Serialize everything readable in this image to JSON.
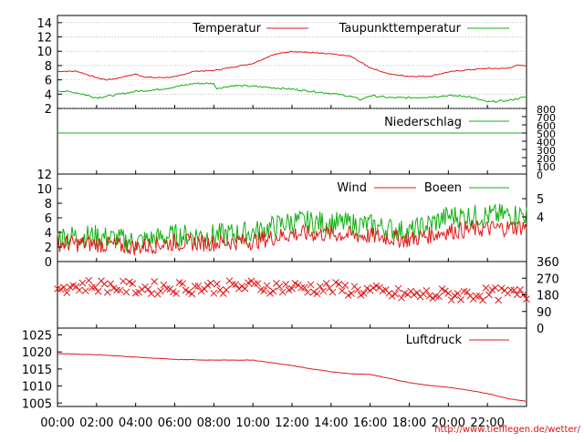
{
  "colors": {
    "red": "#e01818",
    "green": "#10b010",
    "black": "#000000",
    "grid": "#a0a0a0",
    "url": "#e01010"
  },
  "footer": {
    "url": "http://www.tiefflegen.de/wetter/"
  },
  "chart_data": [
    {
      "type": "line",
      "panel": "temperature",
      "ylim": [
        2,
        15
      ],
      "yticks": [
        "2",
        "4",
        "6",
        "8",
        "10",
        "12",
        "14"
      ],
      "xlim": [
        0,
        24
      ],
      "grid": true,
      "legend_position": "top-right",
      "series": [
        {
          "name": "Temperatur",
          "color": "#e01818",
          "x": [
            0,
            1,
            2,
            2.5,
            3,
            4,
            4.5,
            5,
            6,
            7,
            8,
            9,
            10,
            11,
            12,
            13,
            14,
            15,
            16,
            17,
            18,
            19,
            20,
            21,
            22,
            23,
            23.5,
            24
          ],
          "y": [
            7.2,
            7.2,
            6.3,
            6.0,
            6.2,
            6.8,
            6.4,
            6.3,
            6.4,
            7.2,
            7.3,
            7.8,
            8.3,
            9.5,
            10.0,
            9.8,
            9.6,
            9.3,
            7.7,
            6.8,
            6.5,
            6.5,
            7.1,
            7.4,
            7.6,
            7.6,
            8.0,
            8.0
          ]
        },
        {
          "name": "Taupunkttemperatur",
          "color": "#10b010",
          "x": [
            0,
            1,
            2,
            3,
            4,
            5,
            6,
            7,
            8,
            8.1,
            9,
            10,
            11,
            12,
            13,
            14,
            15,
            15.5,
            16,
            17,
            18,
            19,
            20,
            21,
            22,
            23,
            24
          ],
          "y": [
            4.5,
            4.2,
            3.5,
            3.9,
            4.4,
            4.6,
            5.0,
            5.5,
            5.5,
            4.8,
            5.2,
            5.1,
            4.9,
            4.7,
            4.4,
            4.1,
            3.7,
            3.2,
            3.8,
            3.5,
            3.5,
            3.6,
            3.8,
            3.7,
            2.9,
            3.1,
            3.6
          ]
        }
      ]
    },
    {
      "type": "line",
      "panel": "precipitation",
      "ylim": [
        0,
        800
      ],
      "yticks_right": [
        "0",
        "100",
        "200",
        "300",
        "400",
        "500",
        "600",
        "700",
        "800"
      ],
      "xlim": [
        0,
        24
      ],
      "legend_position": "top-right",
      "series": [
        {
          "name": "Niederschlag",
          "color": "#10b010",
          "x": [
            0,
            24
          ],
          "y": [
            500,
            500
          ]
        }
      ]
    },
    {
      "type": "line",
      "panel": "wind",
      "ylim": [
        0,
        12
      ],
      "yticks": [
        "0",
        "2",
        "4",
        "6",
        "8",
        "10",
        "12"
      ],
      "yticks_right": [
        "4",
        "5"
      ],
      "xlim": [
        0,
        24
      ],
      "legend_position": "top-right",
      "series": [
        {
          "name": "Wind",
          "color": "#e01818",
          "x": [
            0,
            2,
            4,
            6,
            8,
            10,
            12,
            14,
            16,
            18,
            20,
            22,
            24
          ],
          "y": [
            2.5,
            2.4,
            2.0,
            2.6,
            2.6,
            2.8,
            3.8,
            3.8,
            3.5,
            3.0,
            4.2,
            4.5,
            4.8
          ]
        },
        {
          "name": "Boeen",
          "color": "#10b010",
          "x": [
            0,
            2,
            4,
            6,
            8,
            10,
            12,
            14,
            16,
            18,
            20,
            22,
            24
          ],
          "y": [
            3.5,
            3.5,
            2.7,
            3.6,
            3.6,
            4.0,
            5.5,
            5.3,
            5.0,
            4.0,
            6.2,
            6.3,
            6.5
          ]
        }
      ]
    },
    {
      "type": "scatter",
      "panel": "wind-direction",
      "ylim": [
        0,
        360
      ],
      "yticks_right": [
        "0",
        "90",
        "180",
        "270",
        "360"
      ],
      "xlim": [
        0,
        24
      ],
      "series": [
        {
          "color": "#e01818",
          "x": [
            0,
            2,
            4,
            6,
            8,
            10,
            12,
            14,
            16,
            17,
            18,
            20,
            22,
            24
          ],
          "y": [
            225,
            230,
            215,
            220,
            220,
            225,
            220,
            215,
            200,
            185,
            180,
            180,
            185,
            180
          ]
        }
      ]
    },
    {
      "type": "line",
      "panel": "pressure",
      "ylim": [
        1004,
        1027
      ],
      "yticks": [
        "1005",
        "1010",
        "1015",
        "1020",
        "1025"
      ],
      "xlim": [
        0,
        24
      ],
      "legend_position": "top-right",
      "series": [
        {
          "name": "Luftdruck",
          "color": "#e01818",
          "x": [
            0,
            2,
            4,
            6,
            8,
            10,
            11,
            12,
            13,
            14,
            15,
            16,
            17,
            18,
            19,
            20,
            21,
            22,
            23,
            24
          ],
          "y": [
            1019.5,
            1019.2,
            1018.5,
            1017.8,
            1017.6,
            1017.6,
            1016.8,
            1016.0,
            1015.0,
            1014.2,
            1013.6,
            1013.4,
            1012.2,
            1011.0,
            1010.2,
            1009.6,
            1008.8,
            1007.8,
            1006.4,
            1005.5
          ]
        }
      ]
    }
  ],
  "x_axis": {
    "ticks": [
      "00:00",
      "02:00",
      "04:00",
      "06:00",
      "08:00",
      "10:00",
      "12:00",
      "14:00",
      "16:00",
      "18:00",
      "20:00",
      "22:00"
    ]
  }
}
